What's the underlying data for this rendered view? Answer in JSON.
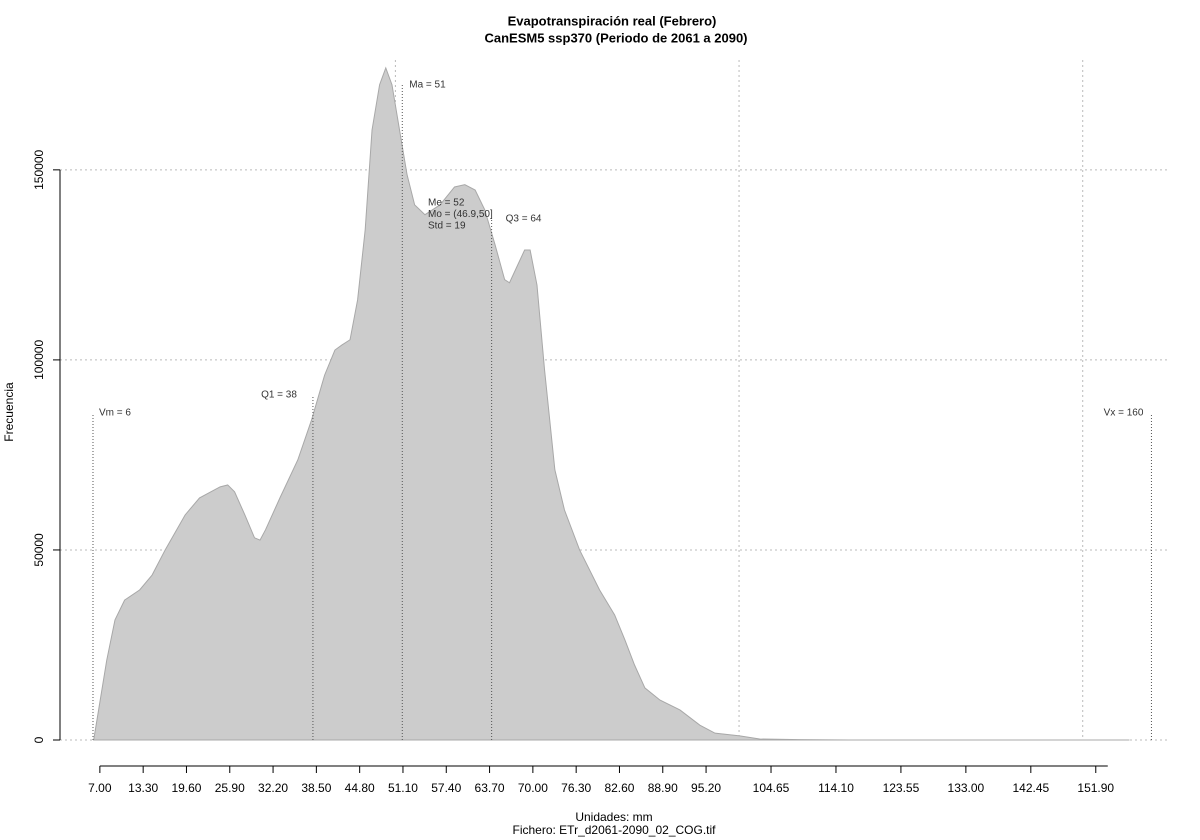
{
  "chart_data": {
    "type": "area",
    "title": "Evapotranspiración real (Febrero)",
    "subtitle": "CanESM5 ssp370 (Periodo de 2061 a 2090)",
    "x_label": "Unidades: mm",
    "file_label": "Fichero: ETr_d2061-2090_02_COG.tif",
    "y_label": "Frecuencia",
    "color": "#cccccc",
    "x": [
      6.1,
      8.0,
      9.2,
      10.6,
      12.8,
      14.6,
      16.5,
      19.4,
      21.5,
      24.5,
      25.6,
      26.6,
      28.1,
      29.5,
      30.3,
      31.1,
      33.2,
      35.8,
      37.8,
      39.7,
      41.2,
      42.2,
      43.4,
      44.5,
      45.6,
      46.6,
      47.7,
      48.6,
      49.5,
      50.6,
      51.7,
      52.8,
      54.3,
      56.5,
      58.6,
      60.1,
      61.6,
      63.0,
      64.5,
      65.9,
      66.6,
      67.8,
      68.8,
      69.6,
      70.6,
      71.7,
      73.2,
      74.6,
      76.8,
      79.7,
      81.9,
      83.4,
      84.8,
      86.3,
      88.5,
      91.4,
      94.3,
      96.5,
      100.1,
      103.0,
      108.8,
      116.0,
      156.8
    ],
    "values": [
      0,
      21000,
      31600,
      36800,
      39500,
      43400,
      50000,
      59200,
      63700,
      66600,
      67100,
      65300,
      59200,
      53200,
      52600,
      55300,
      63700,
      73700,
      84200,
      96000,
      102600,
      103900,
      105300,
      115800,
      134200,
      160500,
      172400,
      176800,
      172400,
      160500,
      148700,
      140800,
      138200,
      140800,
      145500,
      146100,
      144700,
      139500,
      130300,
      121100,
      120300,
      125000,
      128900,
      128900,
      119700,
      97400,
      71100,
      60500,
      50000,
      39500,
      32900,
      26300,
      19700,
      13700,
      10500,
      7900,
      3900,
      1800,
      1100,
      260,
      100,
      0,
      0
    ],
    "xlim": [
      1.2,
      162.7
    ],
    "ylim": [
      -6840,
      178900
    ],
    "xticks": [
      {
        "value": 7,
        "label": "7.00"
      },
      {
        "value": 13.3,
        "label": "13.30"
      },
      {
        "value": 19.6,
        "label": "19.60"
      },
      {
        "value": 25.9,
        "label": "25.90"
      },
      {
        "value": 32.2,
        "label": "32.20"
      },
      {
        "value": 38.5,
        "label": "38.50"
      },
      {
        "value": 44.8,
        "label": "44.80"
      },
      {
        "value": 51.1,
        "label": "51.10"
      },
      {
        "value": 57.4,
        "label": "57.40"
      },
      {
        "value": 63.7,
        "label": "63.70"
      },
      {
        "value": 70,
        "label": "70.00"
      },
      {
        "value": 76.3,
        "label": "76.30"
      },
      {
        "value": 82.6,
        "label": "82.60"
      },
      {
        "value": 88.9,
        "label": "88.90"
      },
      {
        "value": 95.2,
        "label": "95.20"
      },
      {
        "value": 104.65,
        "label": "104.65"
      },
      {
        "value": 114.1,
        "label": "114.10"
      },
      {
        "value": 123.55,
        "label": "123.55"
      },
      {
        "value": 133,
        "label": "133.00"
      },
      {
        "value": 142.45,
        "label": "142.45"
      },
      {
        "value": 151.9,
        "label": "151.90"
      }
    ],
    "yticks": [
      0,
      50000,
      100000,
      150000
    ],
    "grid": true,
    "xgrid": [
      50,
      100,
      150
    ],
    "annotations": [
      {
        "label": "Vm = 6",
        "x": 6
      },
      {
        "label": "Q1 = 38",
        "x": 38
      },
      {
        "label": "Ma = 51",
        "x": 51
      },
      {
        "label": "Q3 = 64",
        "x": 64
      },
      {
        "label": "Vx = 160",
        "x": 160
      }
    ],
    "stats": [
      "Me = 52",
      "Mo = (46.9,50]",
      "Std = 19"
    ]
  }
}
